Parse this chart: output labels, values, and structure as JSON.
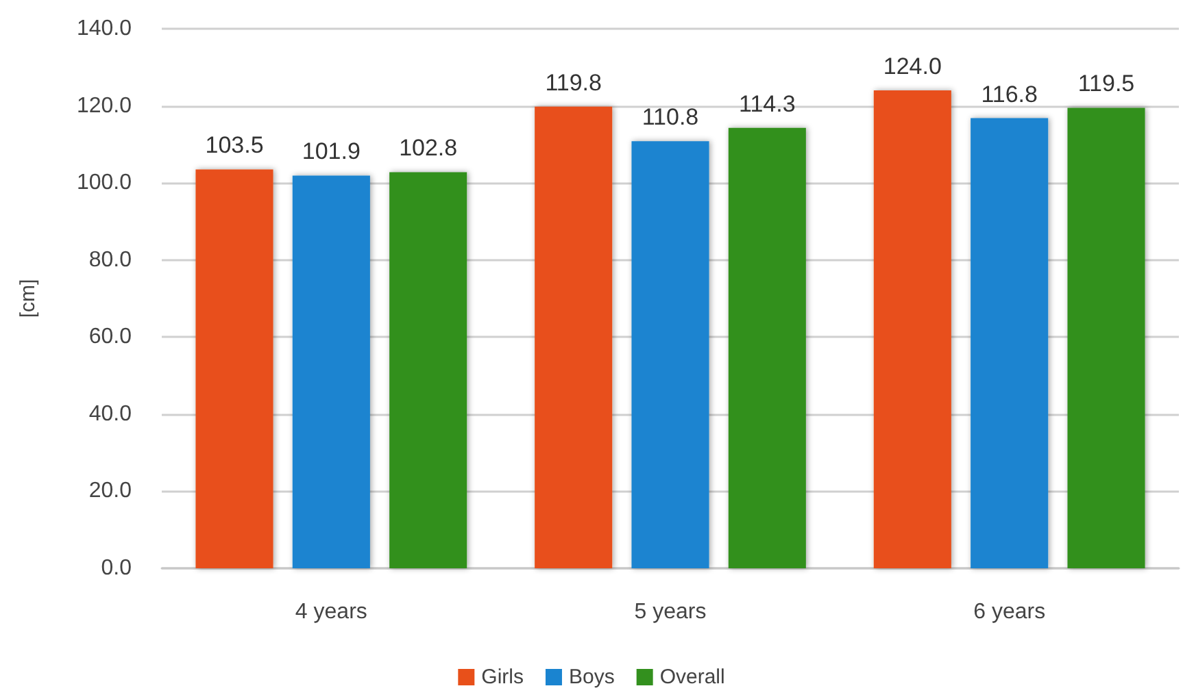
{
  "chart_data": {
    "type": "bar",
    "ylabel": "[cm]",
    "categories": [
      "4 years",
      "5 years",
      "6 years"
    ],
    "series": [
      {
        "name": "Girls",
        "color": "#e8501a",
        "values": [
          103.5,
          119.8,
          124.0
        ],
        "value_labels": [
          "103.5",
          "119.8",
          "124.0"
        ]
      },
      {
        "name": "Boys",
        "color": "#1a84d0",
        "values": [
          101.9,
          110.8,
          116.8
        ],
        "value_labels": [
          "101.9",
          "110.8",
          "116.8"
        ]
      },
      {
        "name": "Overall",
        "color": "#33901e",
        "values": [
          102.8,
          114.3,
          119.5
        ],
        "value_labels": [
          "102.8",
          "114.3",
          "119.5"
        ]
      }
    ],
    "ylim": [
      0,
      140
    ],
    "yticks": [
      {
        "value": 0,
        "label": "0.0"
      },
      {
        "value": 20,
        "label": "20.0"
      },
      {
        "value": 40,
        "label": "40.0"
      },
      {
        "value": 60,
        "label": "60.0"
      },
      {
        "value": 80,
        "label": "80.0"
      },
      {
        "value": 100,
        "label": "100.0"
      },
      {
        "value": 120,
        "label": "120.0"
      },
      {
        "value": 140,
        "label": "140.0"
      }
    ],
    "grid": "y",
    "legend": "bottom"
  }
}
